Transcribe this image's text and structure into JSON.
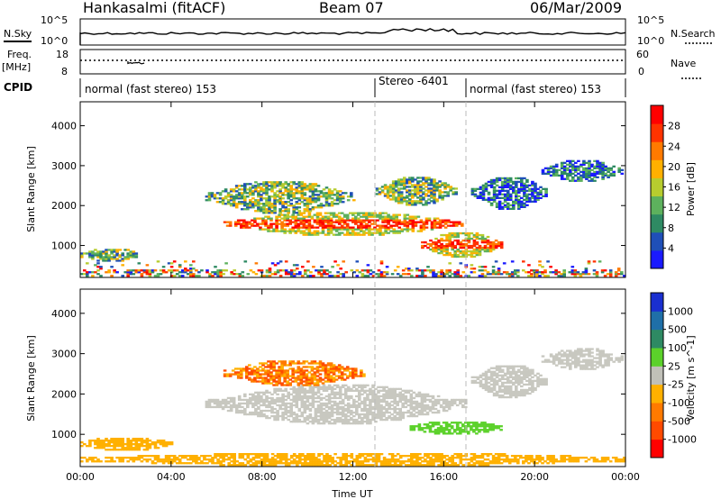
{
  "header": {
    "title": "Hankasalmi (fitACF)",
    "beam": "Beam 07",
    "date": "06/Mar/2009"
  },
  "noise_panel": {
    "left_label": "N.Sky",
    "right_label": "N.Search",
    "left_ticks": [
      "10^5",
      "10^0"
    ],
    "right_ticks": [
      "10^5",
      "10^0"
    ]
  },
  "freq_panel": {
    "left_label": "Freq.",
    "left_unit": "[MHz]",
    "right_label": "Nave",
    "left_ticks": [
      "18",
      "8"
    ],
    "right_ticks": [
      "60",
      "0"
    ]
  },
  "cpid": {
    "label": "CPID",
    "segments": [
      {
        "name": "normal (fast stereo) 153",
        "start_hour": 0,
        "end_hour": 13.0
      },
      {
        "name": "Stereo -6401",
        "start_hour": 13.0,
        "end_hour": 17.0
      },
      {
        "name": "normal (fast stereo) 153",
        "start_hour": 17.0,
        "end_hour": 24.0
      }
    ]
  },
  "colors": {
    "power_scale": [
      "#1a1aff",
      "#1f4fb8",
      "#2e8a63",
      "#5db15d",
      "#b7cc2e",
      "#ffb000",
      "#ff7a00",
      "#ff3300",
      "#ff0000"
    ],
    "velocity_scale": [
      "#1a2fd0",
      "#1f6fa8",
      "#2e8a63",
      "#5bd12a",
      "#c0c0b8",
      "#ffb000",
      "#ff7a00",
      "#ff4a00",
      "#ff0000"
    ],
    "ground_scatter": "#c8c8c0"
  },
  "chart_data": [
    {
      "type": "heatmap",
      "panel": "power",
      "xlabel": "",
      "ylabel": "Slant Range [km]",
      "xlim_hours": [
        0,
        24
      ],
      "ylim_km": [
        200,
        4600
      ],
      "y_ticks": [
        1000,
        2000,
        3000,
        4000
      ],
      "colorbar": {
        "label": "Power [dB]",
        "range": [
          0,
          32
        ],
        "ticks": [
          4,
          8,
          12,
          16,
          20,
          24,
          28
        ]
      },
      "regions": [
        {
          "t": [
            6.3,
            16.8
          ],
          "r": [
            1250,
            1800
          ],
          "level": "high"
        },
        {
          "t": [
            5.5,
            12.0
          ],
          "r": [
            1800,
            2600
          ],
          "level": "mid"
        },
        {
          "t": [
            13.0,
            16.5
          ],
          "r": [
            2000,
            2700
          ],
          "level": "mid"
        },
        {
          "t": [
            15.0,
            18.5
          ],
          "r": [
            700,
            1300
          ],
          "level": "high"
        },
        {
          "t": [
            17.2,
            20.5
          ],
          "r": [
            1900,
            2700
          ],
          "level": "low"
        },
        {
          "t": [
            20.3,
            23.8
          ],
          "r": [
            2600,
            3100
          ],
          "level": "low"
        },
        {
          "t": [
            0.0,
            2.5
          ],
          "r": [
            600,
            900
          ],
          "level": "mid"
        },
        {
          "t": [
            0.0,
            24.0
          ],
          "r": [
            220,
            600
          ],
          "level": "noise"
        }
      ]
    },
    {
      "type": "heatmap",
      "panel": "velocity",
      "xlabel": "Time UT",
      "ylabel": "Slant Range [km]",
      "xlim_hours": [
        0,
        24
      ],
      "ylim_km": [
        200,
        4600
      ],
      "y_ticks": [
        1000,
        2000,
        3000,
        4000
      ],
      "x_ticks": [
        "00:00",
        "04:00",
        "08:00",
        "12:00",
        "16:00",
        "20:00",
        "00:00"
      ],
      "colorbar": {
        "label": "Velocity [m s^-1]",
        "ticks": [
          "1000",
          "500",
          "100",
          "25",
          "-25",
          "-100",
          "-500",
          "-1000"
        ]
      },
      "regions": [
        {
          "t": [
            5.5,
            17.0
          ],
          "r": [
            1250,
            2200
          ],
          "class": "ground"
        },
        {
          "t": [
            6.3,
            12.5
          ],
          "r": [
            2200,
            2800
          ],
          "class": "neg_mid"
        },
        {
          "t": [
            14.5,
            18.5
          ],
          "r": [
            1000,
            1300
          ],
          "class": "pos_low"
        },
        {
          "t": [
            17.2,
            20.5
          ],
          "r": [
            1900,
            2700
          ],
          "class": "ground"
        },
        {
          "t": [
            20.3,
            23.8
          ],
          "r": [
            2600,
            3100
          ],
          "class": "ground"
        },
        {
          "t": [
            0.0,
            4.0
          ],
          "r": [
            600,
            900
          ],
          "class": "neg_low"
        }
      ]
    }
  ]
}
